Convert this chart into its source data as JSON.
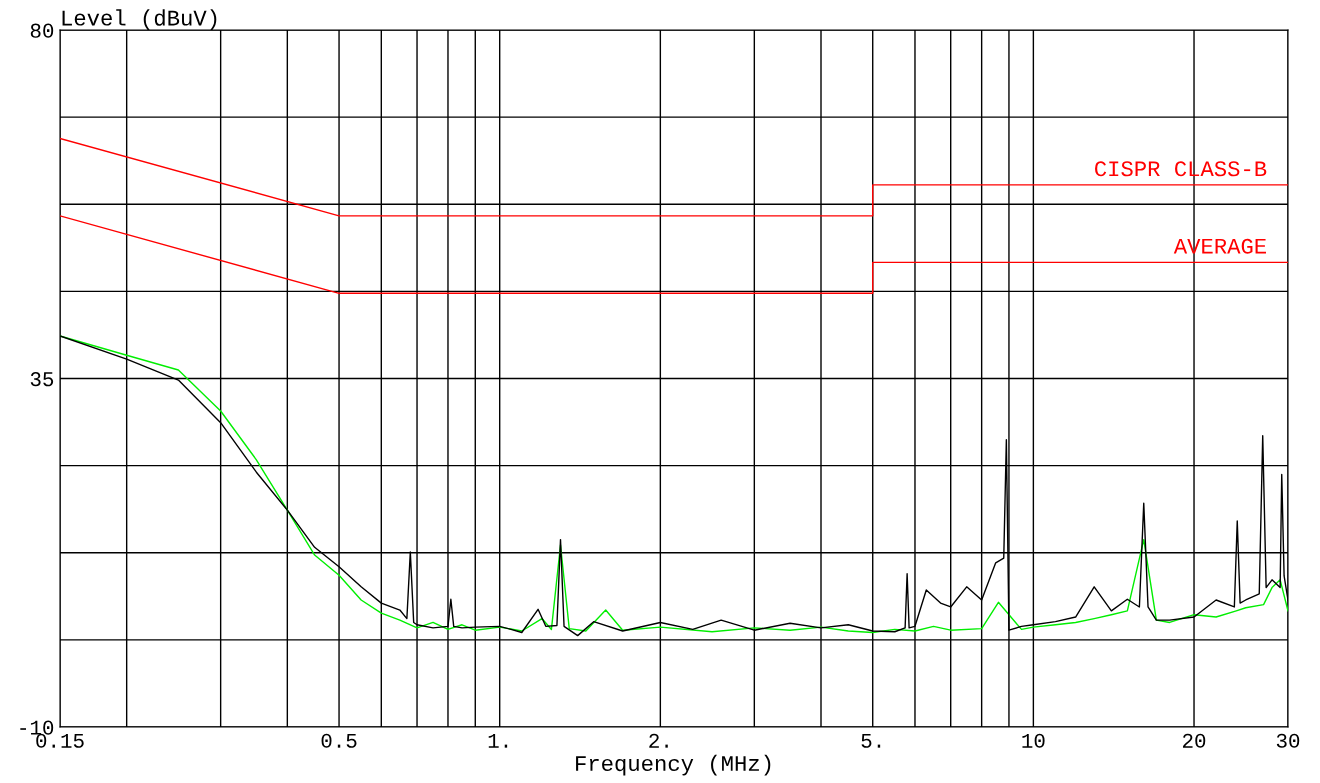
{
  "chart_data": {
    "type": "line",
    "xlabel": "Frequency (MHz)",
    "ylabel": "Level (dBuV)",
    "log": "x",
    "grid": true,
    "legend": false,
    "xlim": [
      0.15,
      30
    ],
    "ylim": [
      -10,
      80
    ],
    "xticks": [
      0.15,
      {
        "value": 0.2,
        "label": null
      },
      {
        "value": 0.3,
        "label": null
      },
      {
        "value": 0.4,
        "label": null
      },
      {
        "value": 0.5,
        "label": "0.5"
      },
      {
        "value": 0.6,
        "label": null
      },
      {
        "value": 0.7,
        "label": null
      },
      {
        "value": 0.8,
        "label": null
      },
      {
        "value": 0.9,
        "label": null
      },
      {
        "value": 1,
        "label": "1."
      },
      {
        "value": 2,
        "label": "2."
      },
      {
        "value": 3,
        "label": null
      },
      {
        "value": 4,
        "label": null
      },
      {
        "value": 5,
        "label": "5."
      },
      {
        "value": 6,
        "label": null
      },
      {
        "value": 7,
        "label": null
      },
      {
        "value": 8,
        "label": null
      },
      {
        "value": 9,
        "label": null
      },
      10,
      20,
      30
    ],
    "yticks": [
      -10,
      {
        "value": 1.25,
        "label": null
      },
      {
        "value": 12.5,
        "label": null
      },
      {
        "value": 23.75,
        "label": null
      },
      35,
      {
        "value": 46.25,
        "label": null
      },
      {
        "value": 57.5,
        "label": null
      },
      {
        "value": 68.75,
        "label": null
      },
      80
    ],
    "series": [
      {
        "name": "CISPR CLASS-B",
        "color": "#ff0000",
        "x": [
          0.15,
          0.5,
          5,
          5,
          30
        ],
        "values": [
          66,
          56,
          56,
          60,
          60
        ]
      },
      {
        "name": "AVERAGE",
        "color": "#ff0000",
        "x": [
          0.15,
          0.5,
          5,
          5,
          30
        ],
        "values": [
          56,
          46,
          46,
          50,
          50
        ]
      },
      {
        "color": "#00ee00",
        "x": [
          0.15,
          0.2,
          0.25,
          0.3,
          0.35,
          0.4,
          0.45,
          0.5,
          0.55,
          0.6,
          0.65,
          0.7,
          0.75,
          0.8,
          0.85,
          0.9,
          1.0,
          1.1,
          1.2,
          1.25,
          1.3,
          1.35,
          1.45,
          1.58,
          1.7,
          2.0,
          2.5,
          3.0,
          3.5,
          4.0,
          4.5,
          5.0,
          5.5,
          6.0,
          6.5,
          7.0,
          8.0,
          8.6,
          9.5,
          10,
          11,
          12,
          13,
          14,
          15,
          16.1,
          17,
          18,
          20,
          22,
          24,
          25,
          27,
          28,
          29,
          30
        ],
        "values": [
          40.5,
          38.0,
          36.1,
          30.8,
          24.5,
          18.0,
          12.2,
          9.6,
          6.4,
          4.7,
          3.8,
          2.8,
          3.5,
          2.6,
          3.2,
          2.5,
          2.9,
          2.4,
          4.0,
          2.6,
          13.5,
          2.7,
          2.4,
          5.1,
          2.5,
          2.9,
          2.3,
          2.8,
          2.5,
          2.9,
          2.4,
          2.2,
          2.6,
          2.4,
          3.0,
          2.5,
          2.7,
          6.1,
          2.6,
          2.9,
          3.2,
          3.5,
          4.0,
          4.5,
          5.0,
          14.2,
          3.8,
          3.5,
          4.5,
          4.2,
          5.0,
          5.4,
          5.8,
          8.0,
          9.0,
          5.0
        ]
      },
      {
        "color": "#000000",
        "x": [
          0.15,
          0.2,
          0.25,
          0.3,
          0.35,
          0.4,
          0.45,
          0.5,
          0.55,
          0.6,
          0.65,
          0.67,
          0.68,
          0.69,
          0.7,
          0.75,
          0.8,
          0.81,
          0.82,
          0.85,
          0.9,
          1.0,
          1.05,
          1.1,
          1.18,
          1.22,
          1.28,
          1.3,
          1.32,
          1.4,
          1.5,
          1.7,
          2.0,
          2.3,
          2.6,
          3.0,
          3.5,
          4.0,
          4.5,
          5.0,
          5.5,
          5.75,
          5.8,
          5.85,
          6.0,
          6.3,
          6.7,
          7.0,
          7.5,
          8.0,
          8.5,
          8.8,
          8.9,
          9.0,
          9.5,
          10,
          11,
          12,
          13,
          14,
          15,
          15.8,
          16.1,
          16.4,
          17,
          18,
          20,
          22,
          23.8,
          24.1,
          24.4,
          25,
          26.5,
          26.9,
          27.3,
          28,
          29.0,
          29.2,
          29.5,
          30
        ],
        "values": [
          40.5,
          37.5,
          34.8,
          29.3,
          22.9,
          18.0,
          13.2,
          10.7,
          8.1,
          6.0,
          5.1,
          4.0,
          12.6,
          3.5,
          3.2,
          2.8,
          3.0,
          6.5,
          3.0,
          2.8,
          2.9,
          3.0,
          2.6,
          2.2,
          5.2,
          3.0,
          3.1,
          14.2,
          3.0,
          1.8,
          3.6,
          2.4,
          3.5,
          2.6,
          3.8,
          2.5,
          3.4,
          2.8,
          3.2,
          2.4,
          2.3,
          2.8,
          9.8,
          2.8,
          3.0,
          7.7,
          6.0,
          5.5,
          8.1,
          6.4,
          11.2,
          11.8,
          27.1,
          2.5,
          3.0,
          3.2,
          3.6,
          4.2,
          8.1,
          5.0,
          6.5,
          5.5,
          18.9,
          5.5,
          3.8,
          3.8,
          4.2,
          6.4,
          5.5,
          16.6,
          6.0,
          6.4,
          7.2,
          27.6,
          8.0,
          9.0,
          8.0,
          22.6,
          9.5,
          6.4
        ]
      }
    ]
  }
}
